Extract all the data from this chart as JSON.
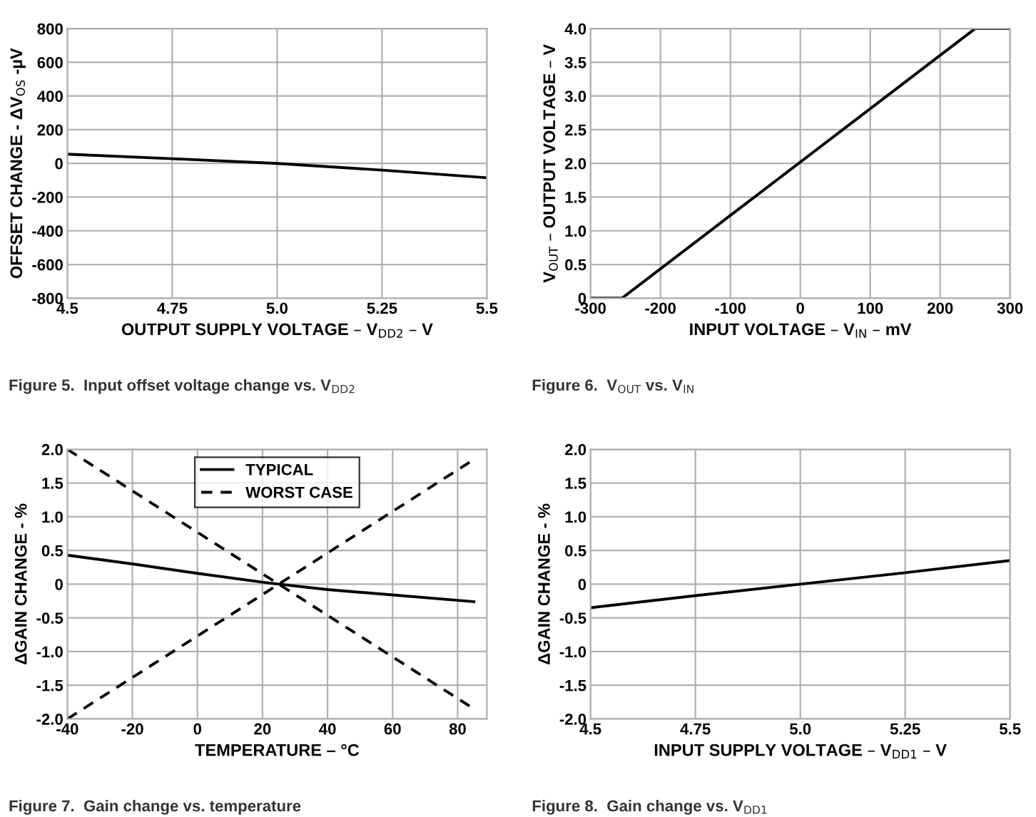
{
  "chart_data": [
    {
      "type": "line",
      "xlabel": "OUTPUT SUPPLY VOLTAGE – V$_{DD2}$ – V",
      "ylabel": "OFFSET CHANGE - ΔV$_{OS}$ -µV",
      "annotations": [
        "Figure 5.  Input offset voltage change vs. V$_{DD2}$"
      ],
      "x": [
        4.5,
        4.75,
        5.0,
        5.25,
        5.5
      ],
      "series": [
        {
          "color": "#000000",
          "values": [
            55,
            28,
            0,
            -40,
            -85
          ]
        }
      ],
      "xlim": [
        4.5,
        5.5
      ],
      "xticks": [
        4.5,
        4.75,
        {
          "value": 5.0,
          "label": "5.0"
        },
        5.25,
        5.5
      ],
      "ylim": [
        -800,
        800
      ],
      "yticks": [
        -800,
        -600,
        -400,
        -200,
        0,
        200,
        400,
        600,
        800
      ],
      "grid": true,
      "legend": false
    },
    {
      "type": "line",
      "xlabel": "INPUT VOLTAGE – V$_{IN}$ – mV",
      "ylabel": "V$_{OUT}$ – OUTPUT VOLTAGE – V",
      "annotations": [
        "Figure 6.  V$_{OUT}$ vs. V$_{IN}$"
      ],
      "x": [
        -300,
        -255,
        250,
        300
      ],
      "series": [
        {
          "color": "#000000",
          "values": [
            0,
            0,
            4.0,
            4.0
          ]
        }
      ],
      "xlim": [
        -300,
        300
      ],
      "xticks": [
        -300,
        -200,
        -100,
        0,
        100,
        200,
        300
      ],
      "ylim": [
        0,
        4
      ],
      "yticks": [
        0,
        0.5,
        {
          "value": 1,
          "label": "1.0"
        },
        1.5,
        {
          "value": 2,
          "label": "2.0"
        },
        2.5,
        {
          "value": 3,
          "label": "3.0"
        },
        3.5,
        {
          "value": 4,
          "label": "4.0"
        }
      ],
      "grid": true,
      "legend": false
    },
    {
      "type": "line",
      "xlabel": "TEMPERATURE – °C",
      "ylabel": "ΔGAIN CHANGE - %",
      "annotations": [
        "Figure 7.  Gain change vs. temperature"
      ],
      "series": [
        {
          "name": "TYPICAL",
          "color": "#000000",
          "line_style": "solid",
          "x": [
            -40,
            -20,
            0,
            20,
            25,
            40,
            60,
            85
          ],
          "values": [
            0.43,
            0.3,
            0.16,
            0.03,
            0,
            -0.08,
            -0.16,
            -0.26
          ]
        },
        {
          "name": "WORST CASE",
          "color": "#000000",
          "line_style": "dashed",
          "x": [
            -40,
            25,
            85
          ],
          "values": [
            2.0,
            0,
            -1.85
          ]
        },
        {
          "color": "#000000",
          "line_style": "dashed",
          "x": [
            -40,
            25,
            85
          ],
          "values": [
            -2.0,
            0,
            1.85
          ]
        }
      ],
      "xlim": [
        -40,
        89
      ],
      "xticks": [
        -40,
        -20,
        0,
        20,
        40,
        60,
        80
      ],
      "ylim": [
        -2,
        2
      ],
      "yticks": [
        {
          "value": -2,
          "label": "-2.0"
        },
        -1.5,
        {
          "value": -1,
          "label": "-1.0"
        },
        -0.5,
        0,
        0.5,
        {
          "value": 1,
          "label": "1.0"
        },
        1.5,
        {
          "value": 2,
          "label": "2.0"
        }
      ],
      "grid": true,
      "legend": "top"
    },
    {
      "type": "line",
      "xlabel": "INPUT SUPPLY VOLTAGE – V$_{DD1}$ – V",
      "ylabel": "ΔGAIN CHANGE - %",
      "annotations": [
        "Figure 8.  Gain change vs. V$_{DD1}$"
      ],
      "x": [
        4.5,
        4.75,
        5.0,
        5.25,
        5.5
      ],
      "series": [
        {
          "color": "#000000",
          "values": [
            -0.35,
            -0.17,
            0,
            0.17,
            0.35
          ]
        }
      ],
      "xlim": [
        4.5,
        5.5
      ],
      "xticks": [
        4.5,
        4.75,
        {
          "value": 5.0,
          "label": "5.0"
        },
        5.25,
        5.5
      ],
      "ylim": [
        -2,
        2
      ],
      "yticks": [
        {
          "value": -2,
          "label": "-2.0"
        },
        -1.5,
        {
          "value": -1,
          "label": "-1.0"
        },
        -0.5,
        0,
        0.5,
        {
          "value": 1,
          "label": "1.0"
        },
        1.5,
        {
          "value": 2,
          "label": "2.0"
        }
      ],
      "grid": true,
      "legend": false
    }
  ]
}
